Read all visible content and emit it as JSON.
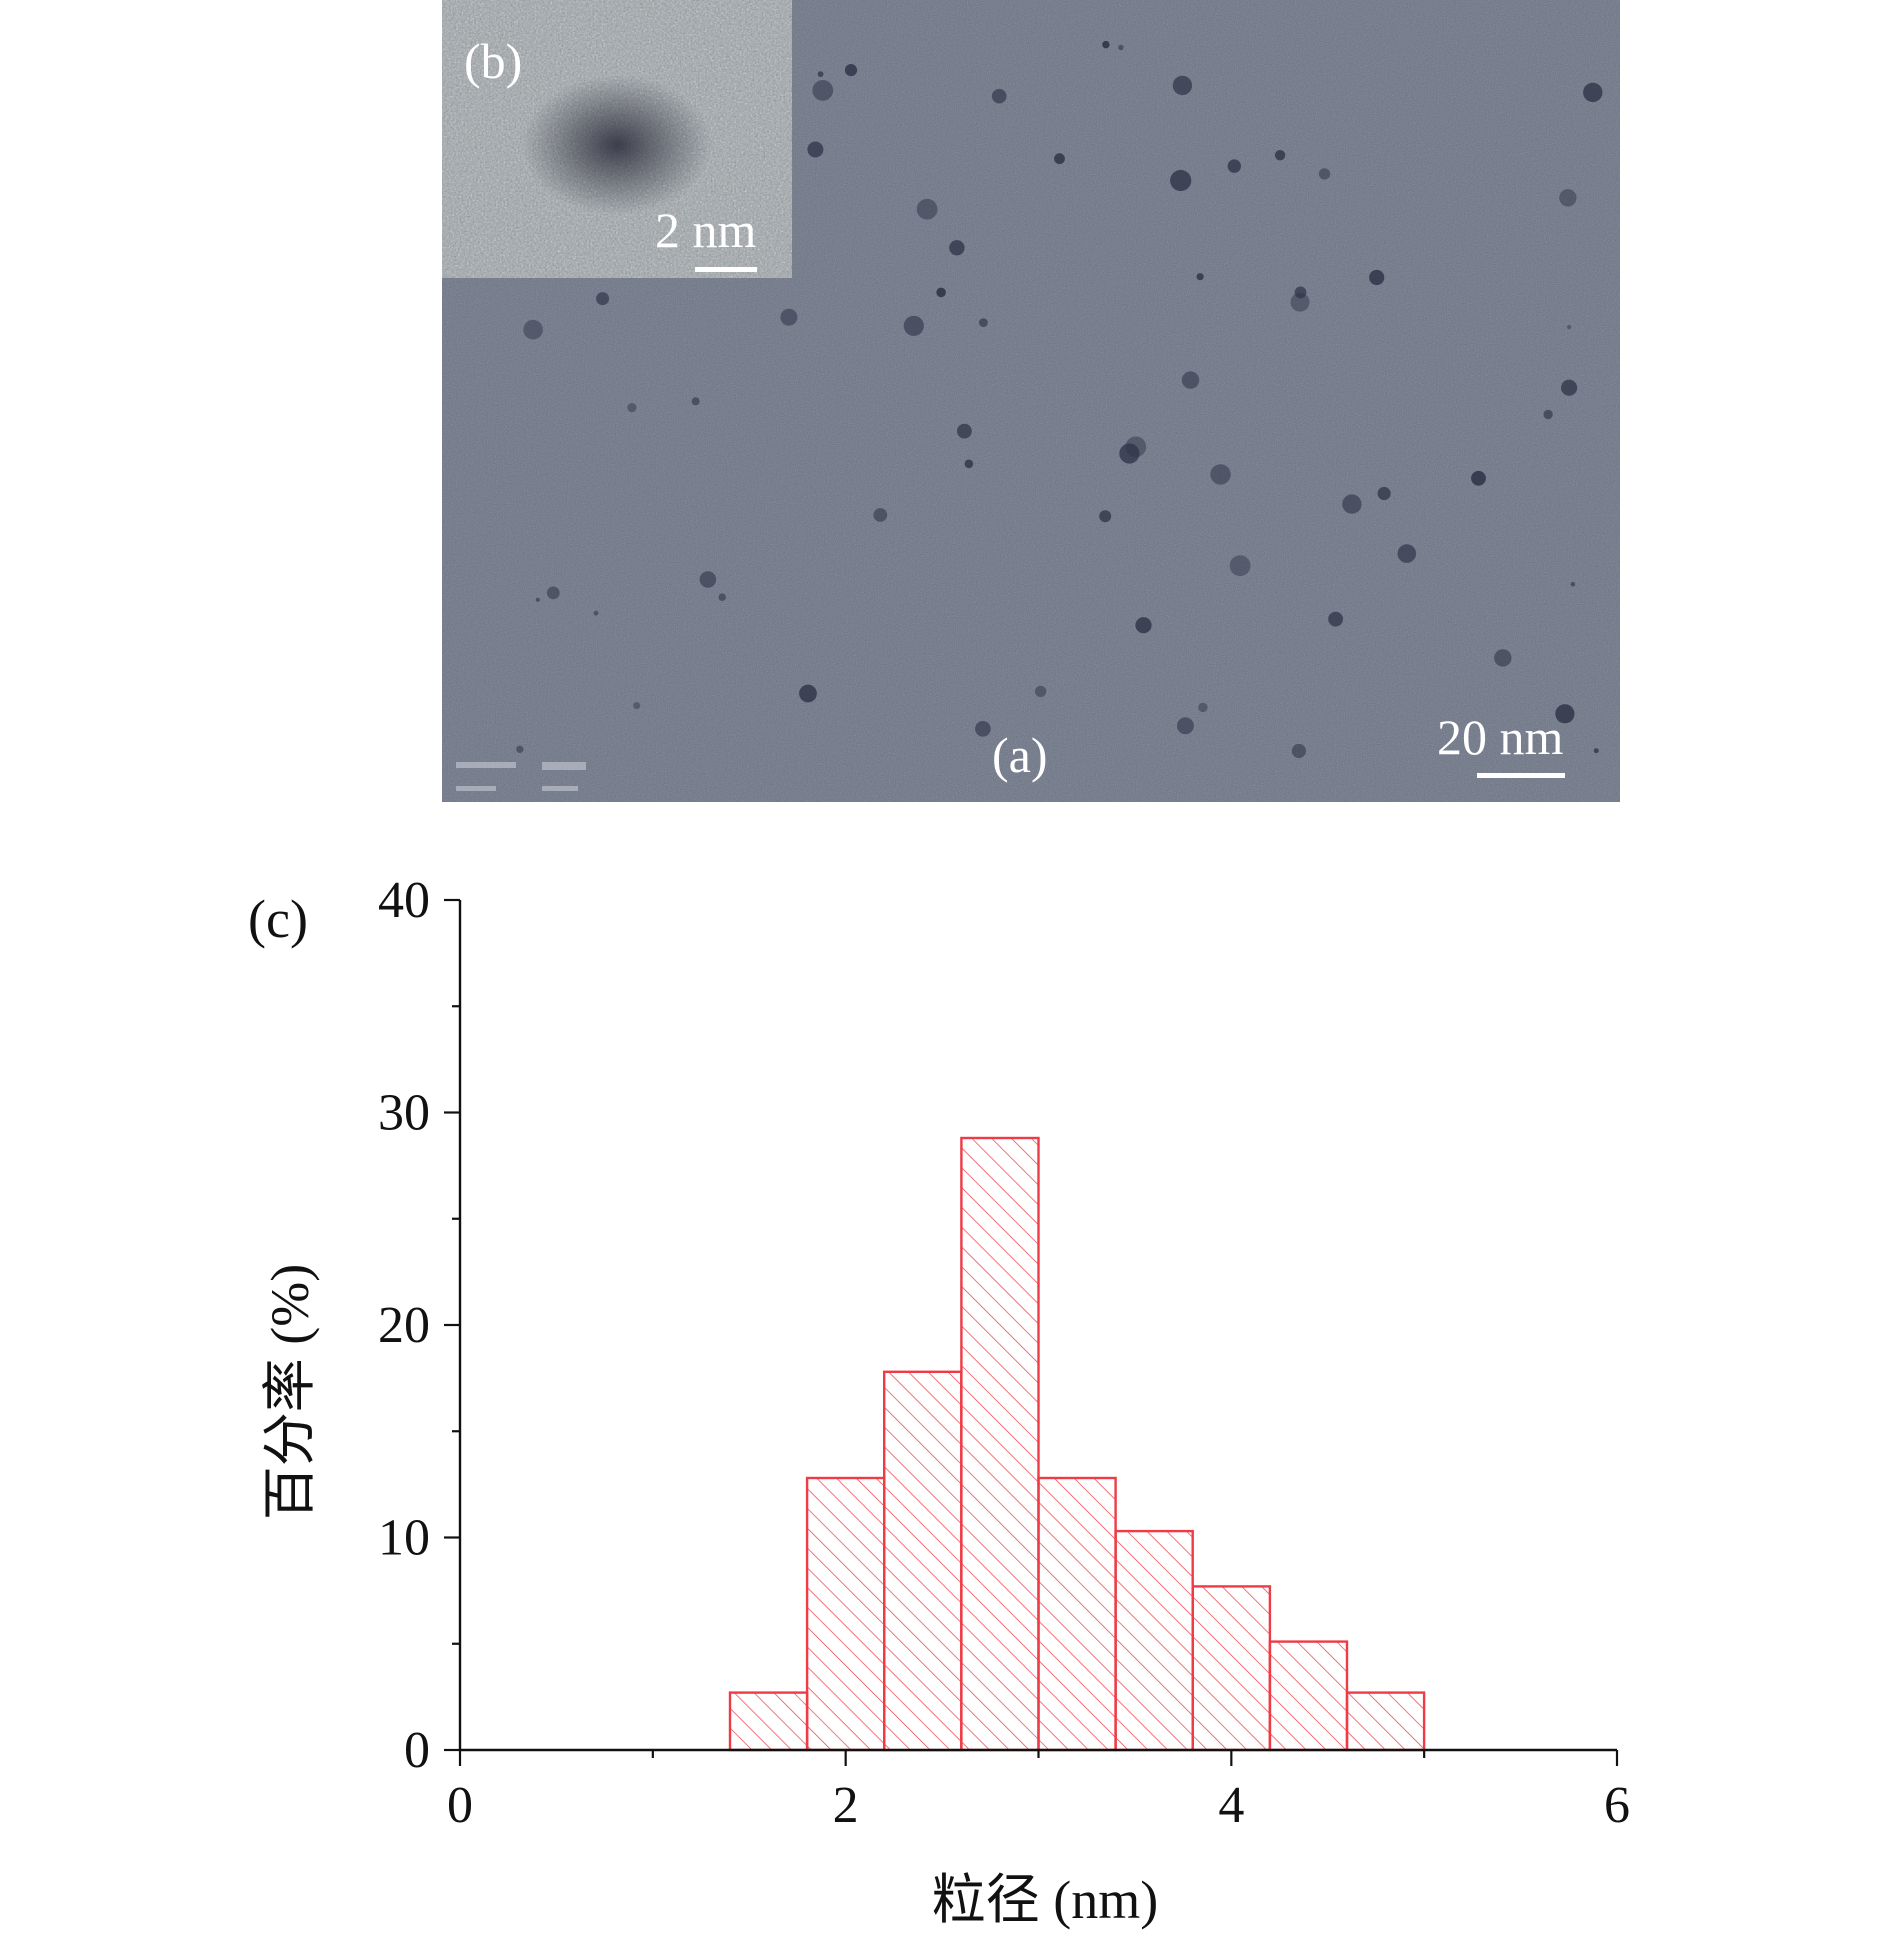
{
  "micrograph": {
    "panel_label_main": "(a)",
    "panel_label_inset": "(b)",
    "scale_main": "20 nm",
    "scale_inset": "2 nm"
  },
  "chart_data": {
    "type": "bar",
    "panel_label": "(c)",
    "title": "",
    "xlabel": "粒径 (nm)",
    "ylabel": "百分率 (%)",
    "xlim": [
      0,
      6
    ],
    "ylim": [
      0,
      40
    ],
    "x_ticks": [
      "0",
      "2",
      "4",
      "6"
    ],
    "y_ticks": [
      "0",
      "10",
      "20",
      "30",
      "40"
    ],
    "bin_edges": [
      1.4,
      1.8,
      2.2,
      2.6,
      3.0,
      3.4,
      3.8,
      4.2,
      4.6,
      5.0
    ],
    "values": [
      2.7,
      12.8,
      17.8,
      28.8,
      12.8,
      10.3,
      7.7,
      5.1,
      2.7
    ],
    "grid": false,
    "bar_color": "#ee3b46",
    "bar_fill": "diagonal-hatch"
  }
}
